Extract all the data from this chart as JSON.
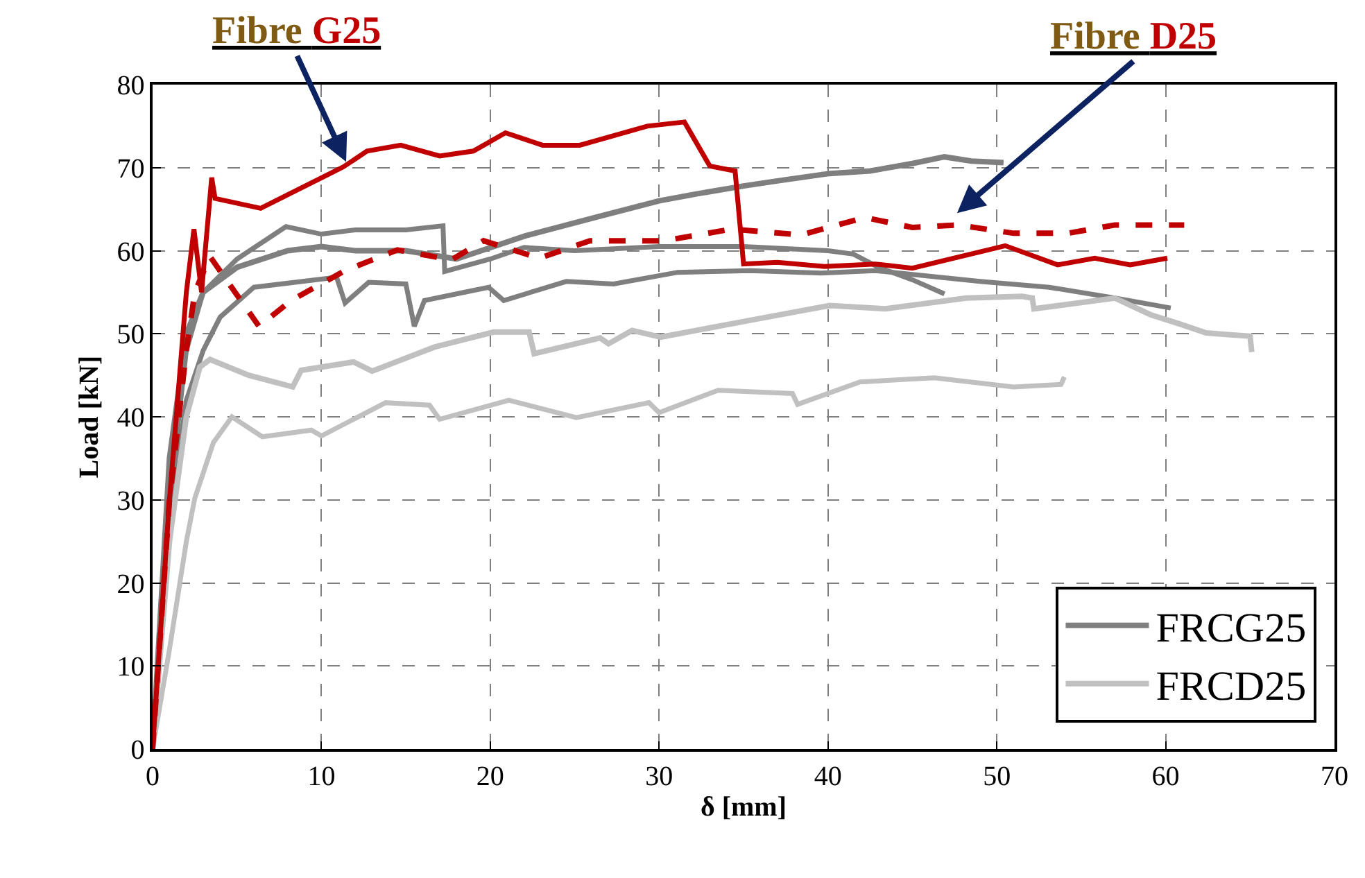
{
  "chart_data": {
    "type": "line",
    "xlabel": "δ [mm]",
    "ylabel": "Load [kN]",
    "xlim": [
      0,
      70
    ],
    "xticks": [
      0,
      10,
      20,
      30,
      40,
      50,
      60,
      70
    ],
    "ylim": [
      0,
      80
    ],
    "yticks": [
      0,
      10,
      20,
      30,
      40,
      50,
      60,
      70,
      80
    ],
    "grid": true,
    "legend": "bottom right",
    "marker": "none",
    "annotations": [
      {
        "text": "Fibre G25",
        "x": 11.6,
        "y": 70.1
      },
      {
        "text": "Fibre D25",
        "x": 47.4,
        "y": 64.1
      }
    ],
    "series": [
      {
        "name": "FRCG25",
        "color": "#7f7f7f",
        "x": [
          0,
          1,
          2,
          3,
          5,
          8,
          10,
          12,
          15,
          18,
          22.1,
          26.2,
          30,
          32.1,
          35,
          37,
          40.1,
          42.5,
          45,
          46.9,
          48.5,
          50.4
        ],
        "values": [
          0,
          35,
          50,
          55,
          58,
          60,
          60.5,
          60,
          60,
          59,
          61.8,
          64,
          66,
          66.8,
          67.8,
          68.4,
          69.3,
          69.6,
          70.5,
          71.3,
          70.8,
          70.6
        ]
      },
      {
        "color": "#7f7f7f",
        "x": [
          0,
          1,
          2,
          3,
          5,
          7.9,
          10,
          12,
          15,
          17.2,
          17.3,
          20,
          22,
          25,
          30,
          35,
          40,
          41.5,
          43,
          45,
          46.9
        ],
        "values": [
          0,
          30,
          48,
          55,
          59,
          62.9,
          62,
          62.5,
          62.5,
          63,
          57.5,
          59,
          60.4,
          60,
          60.5,
          60.5,
          60,
          59.6,
          58,
          56.5,
          54.8
        ]
      },
      {
        "color": "#7f7f7f",
        "x": [
          0,
          1,
          2,
          3,
          4,
          6,
          10.9,
          11.4,
          12.8,
          15,
          15.5,
          16.1,
          18,
          19.9,
          20.8,
          24.5,
          27.3,
          31.1,
          35.4,
          39.6,
          42.8,
          49,
          53.1,
          57,
          60.3
        ],
        "values": [
          0,
          28,
          42,
          48,
          52,
          55.6,
          56.8,
          53.7,
          56.2,
          56,
          50.9,
          54,
          54.8,
          55.6,
          54,
          56.3,
          56,
          57.4,
          57.6,
          57.3,
          57.6,
          56.3,
          55.6,
          54.3,
          53.1
        ]
      },
      {
        "name": "FRCD25",
        "color": "#c0c0c0",
        "x": [
          0,
          1,
          2,
          2.8,
          3.4,
          5.7,
          8.3,
          8.8,
          11.9,
          13,
          16.7,
          20.2,
          22.3,
          22.6,
          26.5,
          27,
          28.4,
          30.1,
          35.6,
          40.1,
          43.4,
          48.2,
          51.5,
          52.1,
          52.2,
          57,
          59.1,
          60.8,
          62.4,
          65,
          65.1
        ],
        "values": [
          0,
          25,
          40,
          46,
          46.9,
          45,
          43.6,
          45.6,
          46.6,
          45.5,
          48.4,
          50.2,
          50.2,
          47.6,
          49.5,
          48.8,
          50.4,
          49.6,
          51.7,
          53.4,
          53,
          54.3,
          54.5,
          54.3,
          53,
          54.3,
          52.3,
          51.2,
          50.1,
          49.7,
          47.8
        ]
      },
      {
        "color": "#c0c0c0",
        "x": [
          0,
          1,
          2,
          2.5,
          3.6,
          4.7,
          6.5,
          9.4,
          10,
          13.8,
          16.4,
          17,
          21.1,
          25.1,
          29.4,
          30,
          33.5,
          37.9,
          38.2,
          41.9,
          46.3,
          51,
          53.8,
          54
        ],
        "values": [
          0,
          12,
          25,
          30.2,
          36.9,
          40,
          37.6,
          38.4,
          37.7,
          41.7,
          41.4,
          39.7,
          42,
          39.9,
          41.7,
          40.5,
          43.2,
          42.8,
          41.5,
          44.2,
          44.7,
          43.6,
          43.9,
          44.8
        ]
      },
      {
        "color": "#c00000",
        "x": [
          0,
          1,
          2,
          2.45,
          2.9,
          3.5,
          3.7,
          6.4,
          11.3,
          12.7,
          14.7,
          17,
          19,
          20.9,
          23.1,
          25.3,
          29.3,
          31.5,
          33,
          34.5,
          35,
          37,
          39.8,
          42.8,
          45,
          50.5,
          53.6,
          55.8,
          57.9,
          60.1
        ],
        "values": [
          0,
          30,
          55,
          62.6,
          55,
          68.8,
          66.3,
          65.1,
          70.1,
          72,
          72.7,
          71.4,
          72,
          74.2,
          72.7,
          72.7,
          75,
          75.5,
          70.2,
          69.6,
          58.4,
          58.6,
          58.1,
          58.4,
          57.9,
          60.6,
          58.3,
          59.1,
          58.3,
          59.1
        ]
      },
      {
        "color": "#c00000",
        "line_style": "dashed",
        "x": [
          0,
          1,
          2,
          2.5,
          3.4,
          6.3,
          8.2,
          11.4,
          14.5,
          17.7,
          19.6,
          22.9,
          25.9,
          30.3,
          34.3,
          38.4,
          42.2,
          45,
          47.7,
          51,
          54.2,
          57,
          61.1
        ],
        "values": [
          0,
          30,
          48,
          55,
          59.3,
          50.9,
          54,
          57.6,
          60.1,
          58.9,
          61.2,
          59.1,
          61.2,
          61.2,
          62.6,
          61.9,
          64,
          62.8,
          63.1,
          62.1,
          62.1,
          63.1,
          63.1
        ]
      }
    ]
  }
}
